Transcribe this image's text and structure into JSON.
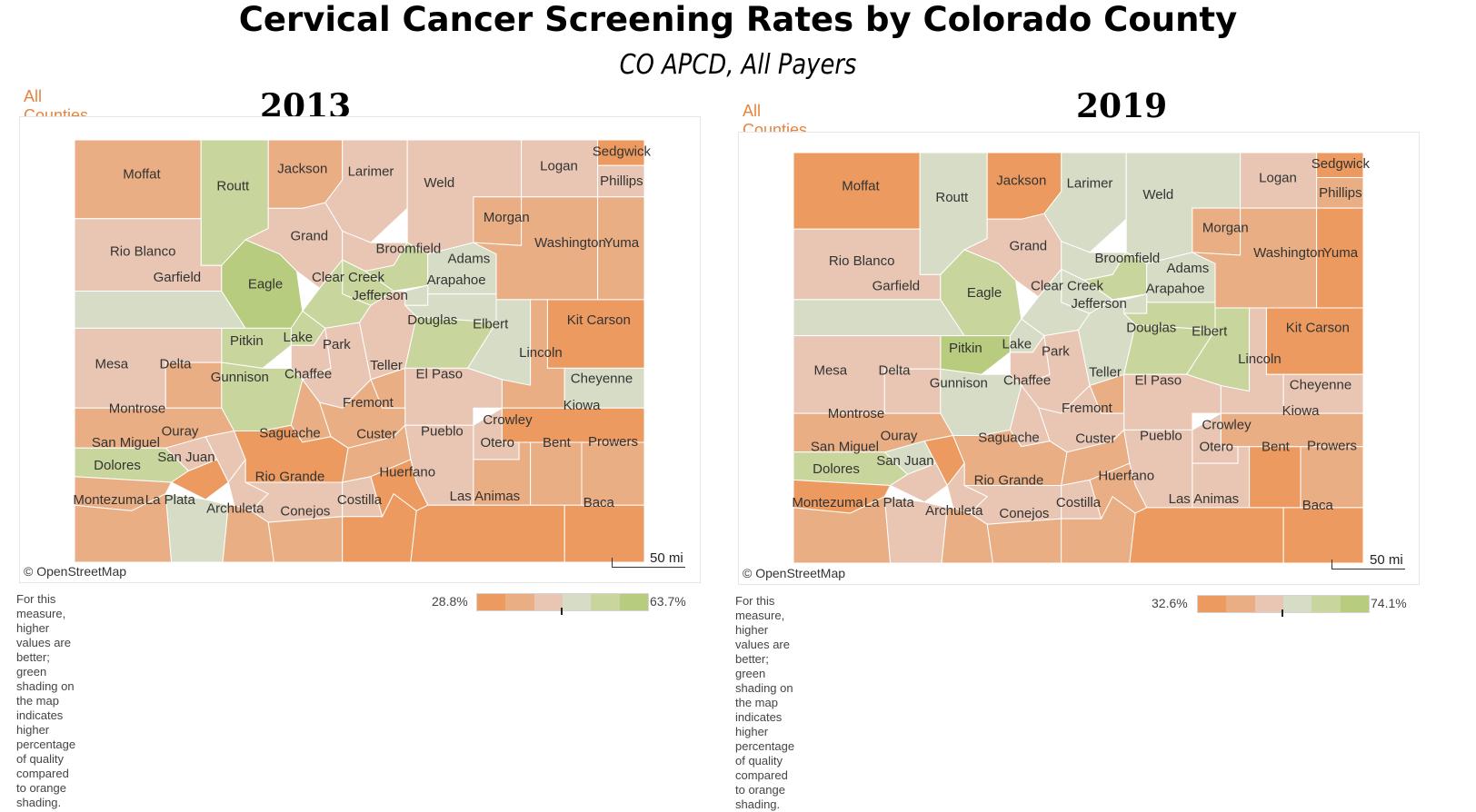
{
  "title": "Cervical Cancer Screening Rates by Colorado County",
  "subtitle": "CO APCD,  All Payers",
  "colors": {
    "orange_dark": "#ec9a60",
    "orange_mid": "#e9ae84",
    "orange_light": "#e8c6b3",
    "green_light": "#d7dcc6",
    "green_mid": "#c8d59d",
    "green_dark": "#b7cc7e",
    "accent": "#e8843f"
  },
  "legend_palette": [
    "#ec9a60",
    "#e9ae84",
    "#e8c6b3",
    "#d7dcc6",
    "#c8d59d",
    "#b7cc7e"
  ],
  "maps": [
    {
      "all_counties_label": "All Counties",
      "year": "2013",
      "attribution": "© OpenStreetMap",
      "scale_label": "50 mi",
      "note_line1": "For this measure, higher values are better; green shading on the map",
      "note_line2": "indicates higher percentage of quality compared to orange shading.",
      "legend_min": "28.8%",
      "legend_max": "63.7%",
      "counties": {
        "Moffat": "orange_mid",
        "Routt": "green_mid",
        "Jackson": "orange_mid",
        "Larimer": "orange_light",
        "Weld": "orange_light",
        "Logan": "orange_light",
        "Sedgwick": "orange_dark",
        "Phillips": "orange_light",
        "Rio Blanco": "orange_light",
        "Garfield": "green_light",
        "Eagle": "green_dark",
        "Grand": "orange_light",
        "Broomfield": "green_mid",
        "Adams": "green_light",
        "Arapahoe": "green_light",
        "Morgan": "orange_mid",
        "Washington": "orange_mid",
        "Yuma": "orange_mid",
        "Clear Creek": "green_mid",
        "Jefferson": "orange_light",
        "Douglas": "green_mid",
        "Elbert": "green_light",
        "Kit Carson": "orange_dark",
        "Pitkin": "green_mid",
        "Lake": "orange_light",
        "Park": "orange_light",
        "Mesa": "orange_light",
        "Delta": "orange_mid",
        "Gunnison": "green_mid",
        "Chaffee": "orange_mid",
        "Teller": "orange_mid",
        "El Paso": "orange_light",
        "Lincoln": "orange_mid",
        "Cheyenne": "green_light",
        "Montrose": "orange_mid",
        "Fremont": "orange_mid",
        "Kiowa": "orange_dark",
        "Crowley": "orange_light",
        "Ouray": "orange_light",
        "San Miguel": "green_mid",
        "Saguache": "orange_dark",
        "Custer": "orange_mid",
        "Pueblo": "orange_light",
        "Otero": "orange_mid",
        "Bent": "orange_mid",
        "Prowers": "orange_mid",
        "San Juan": "orange_dark",
        "Dolores": "orange_mid",
        "Rio Grande": "orange_light",
        "Huerfano": "orange_dark",
        "Las Animas": "orange_dark",
        "Baca": "orange_dark",
        "Montezuma": "orange_mid",
        "La Plata": "green_light",
        "Archuleta": "orange_mid",
        "Conejos": "orange_mid",
        "Costilla": "orange_dark",
        "Alamosa": "orange_light",
        "Hinsdale": "orange_light",
        "Mineral": "orange_light",
        "Gilpin": "green_mid",
        "Boulder": "orange_light",
        "Denver": "green_light",
        "Summit": "green_mid"
      }
    },
    {
      "all_counties_label": "All Counties",
      "year": "2019",
      "attribution": "© OpenStreetMap",
      "scale_label": "50 mi",
      "note_line1": "For this measure, higher values are better; green shading on the map",
      "note_line2": "indicates higher percentage of quality compared to orange shading.",
      "legend_min": "32.6%",
      "legend_max": "74.1%",
      "counties": {
        "Moffat": "orange_dark",
        "Routt": "green_light",
        "Jackson": "orange_dark",
        "Larimer": "green_light",
        "Weld": "green_light",
        "Logan": "orange_light",
        "Sedgwick": "orange_dark",
        "Phillips": "orange_mid",
        "Rio Blanco": "orange_light",
        "Garfield": "green_light",
        "Eagle": "green_mid",
        "Grand": "orange_light",
        "Broomfield": "green_mid",
        "Adams": "green_light",
        "Arapahoe": "green_mid",
        "Morgan": "orange_mid",
        "Washington": "orange_mid",
        "Yuma": "orange_dark",
        "Clear Creek": "green_light",
        "Jefferson": "green_light",
        "Douglas": "green_mid",
        "Elbert": "green_mid",
        "Kit Carson": "orange_dark",
        "Pitkin": "green_dark",
        "Lake": "orange_light",
        "Park": "orange_light",
        "Mesa": "orange_light",
        "Delta": "orange_light",
        "Gunnison": "green_light",
        "Chaffee": "orange_light",
        "Teller": "orange_mid",
        "El Paso": "orange_light",
        "Lincoln": "orange_light",
        "Cheyenne": "orange_light",
        "Montrose": "orange_mid",
        "Fremont": "orange_light",
        "Kiowa": "orange_mid",
        "Crowley": "orange_light",
        "Ouray": "green_light",
        "San Miguel": "green_mid",
        "Saguache": "orange_mid",
        "Custer": "orange_mid",
        "Pueblo": "orange_light",
        "Otero": "orange_light",
        "Bent": "orange_dark",
        "Prowers": "orange_mid",
        "San Juan": "orange_light",
        "Dolores": "orange_dark",
        "Rio Grande": "orange_light",
        "Huerfano": "orange_mid",
        "Las Animas": "orange_dark",
        "Baca": "orange_dark",
        "Montezuma": "orange_mid",
        "La Plata": "orange_light",
        "Archuleta": "orange_mid",
        "Conejos": "orange_mid",
        "Costilla": "orange_mid",
        "Alamosa": "orange_light",
        "Hinsdale": "orange_dark",
        "Mineral": "orange_light",
        "Gilpin": "green_light",
        "Boulder": "green_light",
        "Denver": "green_light",
        "Summit": "green_light"
      }
    }
  ]
}
